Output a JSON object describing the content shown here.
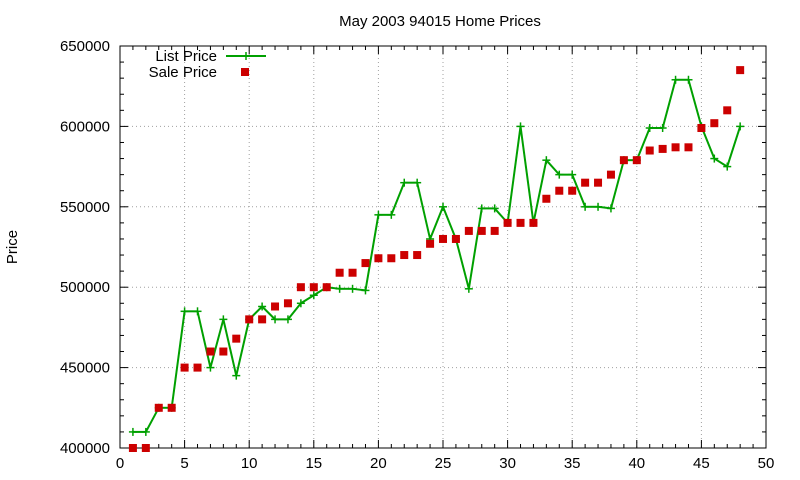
{
  "chart_data": {
    "type": "line",
    "title": "May 2003 94015 Home Prices",
    "xlabel": "",
    "ylabel": "Price",
    "xlim": [
      0,
      50
    ],
    "ylim": [
      400000,
      650000
    ],
    "xticks": [
      0,
      5,
      10,
      15,
      20,
      25,
      30,
      35,
      40,
      45,
      50
    ],
    "yticks": [
      400000,
      450000,
      500000,
      550000,
      600000,
      650000
    ],
    "grid": true,
    "legend_position": "top-left",
    "x": [
      1,
      2,
      3,
      4,
      5,
      6,
      7,
      8,
      9,
      10,
      11,
      12,
      13,
      14,
      15,
      16,
      17,
      18,
      19,
      20,
      21,
      22,
      23,
      24,
      25,
      26,
      27,
      28,
      29,
      30,
      31,
      32,
      33,
      34,
      35,
      36,
      37,
      38,
      39,
      40,
      41,
      42,
      43,
      44,
      45,
      46,
      47,
      48
    ],
    "series": [
      {
        "name": "List Price",
        "style": "line-plus",
        "color": "#00a000",
        "values": [
          410000,
          410000,
          425000,
          425000,
          485000,
          485000,
          450000,
          480000,
          445000,
          480000,
          488000,
          480000,
          480000,
          490000,
          495000,
          500000,
          499000,
          499000,
          498000,
          545000,
          545000,
          565000,
          565000,
          530000,
          550000,
          530000,
          499000,
          549000,
          549000,
          540000,
          600000,
          540000,
          579000,
          570000,
          570000,
          550000,
          550000,
          549000,
          579000,
          579000,
          599000,
          599000,
          629000,
          629000,
          600000,
          580000,
          575000,
          600000
        ]
      },
      {
        "name": "Sale Price",
        "style": "square-points",
        "color": "#cc0000",
        "values": [
          400000,
          400000,
          425000,
          425000,
          450000,
          450000,
          460000,
          460000,
          468000,
          480000,
          480000,
          488000,
          490000,
          500000,
          500000,
          500000,
          509000,
          509000,
          515000,
          518000,
          518000,
          520000,
          520000,
          527000,
          530000,
          530000,
          535000,
          535000,
          535000,
          540000,
          540000,
          540000,
          555000,
          560000,
          560000,
          565000,
          565000,
          570000,
          579000,
          579000,
          585000,
          586000,
          587000,
          587000,
          599000,
          602000,
          610000,
          635000
        ]
      }
    ]
  }
}
